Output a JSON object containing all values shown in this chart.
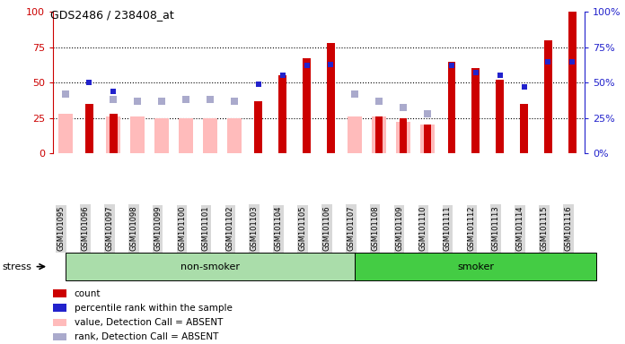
{
  "title": "GDS2486 / 238408_at",
  "samples": [
    "GSM101095",
    "GSM101096",
    "GSM101097",
    "GSM101098",
    "GSM101099",
    "GSM101100",
    "GSM101101",
    "GSM101102",
    "GSM101103",
    "GSM101104",
    "GSM101105",
    "GSM101106",
    "GSM101107",
    "GSM101108",
    "GSM101109",
    "GSM101110",
    "GSM101111",
    "GSM101112",
    "GSM101113",
    "GSM101114",
    "GSM101115",
    "GSM101116"
  ],
  "red_bars": [
    0,
    35,
    28,
    0,
    0,
    0,
    0,
    0,
    37,
    55,
    67,
    78,
    0,
    26,
    25,
    20,
    65,
    60,
    52,
    35,
    80,
    100
  ],
  "blue_squares": [
    null,
    50,
    44,
    null,
    null,
    null,
    null,
    null,
    49,
    55,
    62,
    63,
    null,
    null,
    null,
    null,
    62,
    57,
    55,
    47,
    65,
    65
  ],
  "pink_bars": [
    28,
    0,
    26,
    26,
    25,
    25,
    25,
    25,
    0,
    0,
    0,
    0,
    26,
    26,
    22,
    20,
    0,
    0,
    0,
    0,
    0,
    0
  ],
  "lightblue_squares": [
    42,
    0,
    38,
    37,
    37,
    38,
    38,
    37,
    0,
    0,
    0,
    0,
    42,
    37,
    32,
    28,
    0,
    0,
    0,
    0,
    0,
    0
  ],
  "non_smoker_count": 12,
  "smoker_count": 10,
  "non_smoker_color": "#aaddaa",
  "smoker_color": "#44cc44",
  "bar_dark_red": "#cc0000",
  "bar_pink": "#ffbbbb",
  "square_blue": "#2222cc",
  "square_light_blue": "#aaaacc",
  "ylim": [
    0,
    100
  ],
  "y_ticks": [
    0,
    25,
    50,
    75,
    100
  ],
  "bg_color": "#ffffff",
  "title_fontsize": 9,
  "tick_fontsize": 6,
  "legend_fontsize": 7.5
}
